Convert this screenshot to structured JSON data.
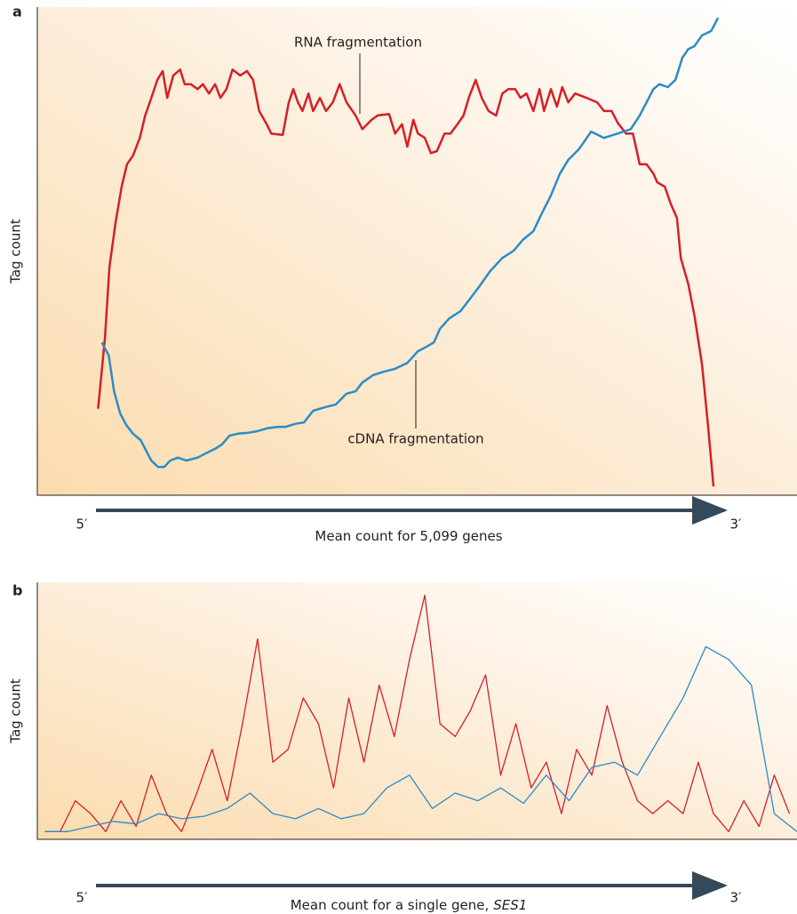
{
  "chart_data": [
    {
      "type": "line",
      "panel_label": "a",
      "y_label": "Tag count",
      "x_label": "Mean count for 5,099 genes",
      "x_start": "5′",
      "x_end": "3′",
      "xlim": [
        0,
        100
      ],
      "ylim": [
        0,
        100
      ],
      "series": [
        {
          "name": "RNA fragmentation",
          "color": "#d42027",
          "x": [
            8.0,
            8.9,
            9.5,
            10.3,
            11.1,
            11.8,
            12.6,
            13.5,
            14.2,
            15.0,
            15.8,
            16.5,
            17.1,
            17.9,
            18.8,
            19.4,
            20.2,
            21.1,
            21.8,
            22.6,
            23.4,
            24.1,
            24.9,
            25.7,
            26.7,
            27.6,
            28.4,
            29.2,
            30.2,
            30.8,
            32.3,
            33.1,
            33.7,
            34.3,
            34.9,
            35.7,
            36.3,
            37.2,
            38.0,
            38.9,
            39.8,
            40.7,
            41.9,
            42.8,
            44.0,
            44.8,
            46.3,
            47.1,
            48.0,
            48.7,
            49.5,
            50.1,
            51.0,
            51.8,
            52.6,
            53.6,
            54.4,
            55.3,
            56.1,
            56.8,
            57.7,
            58.5,
            59.4,
            60.4,
            61.2,
            62.0,
            62.9,
            63.6,
            64.4,
            65.3,
            66.1,
            66.7,
            67.6,
            68.4,
            69.1,
            69.9,
            70.8,
            72.3,
            73.7,
            74.6,
            75.6,
            76.4,
            77.5,
            78.4,
            79.3,
            80.2,
            81.1,
            81.6,
            82.6,
            83.4,
            84.2,
            84.7,
            85.7,
            86.5,
            87.5,
            88.3,
            89.0
          ],
          "values": [
            17.7,
            32.2,
            46.8,
            55.9,
            63.2,
            67.8,
            69.6,
            73.2,
            77.8,
            81.4,
            85.1,
            86.9,
            81.4,
            86.0,
            87.2,
            84.2,
            84.2,
            83.2,
            84.2,
            82.3,
            84.2,
            81.4,
            83.2,
            87.2,
            86.0,
            86.9,
            85.1,
            78.7,
            76.0,
            74.1,
            73.8,
            80.5,
            83.2,
            80.5,
            78.7,
            82.3,
            78.7,
            81.4,
            78.7,
            80.5,
            84.2,
            80.5,
            77.8,
            75.0,
            76.9,
            77.8,
            78.1,
            74.1,
            76.0,
            71.4,
            76.9,
            74.1,
            73.2,
            70.1,
            70.5,
            74.1,
            74.1,
            76.0,
            77.8,
            81.4,
            85.1,
            81.4,
            78.7,
            77.8,
            82.3,
            83.2,
            83.2,
            81.4,
            82.3,
            78.7,
            83.2,
            78.7,
            83.2,
            79.6,
            83.6,
            80.5,
            82.3,
            81.4,
            80.5,
            78.7,
            78.7,
            76.3,
            74.1,
            74.1,
            67.8,
            67.8,
            65.9,
            64.1,
            63.2,
            59.6,
            56.8,
            48.6,
            43.2,
            36.8,
            26.8,
            14.0,
            1.8
          ]
        },
        {
          "name": "cDNA fragmentation",
          "color": "#2b8cc4",
          "x": [
            8.5,
            9.4,
            10.1,
            10.9,
            11.7,
            12.6,
            13.6,
            14.2,
            15.0,
            15.9,
            16.7,
            17.5,
            18.5,
            19.6,
            21.1,
            22.2,
            23.4,
            24.3,
            25.3,
            26.4,
            27.8,
            28.9,
            30.2,
            31.6,
            32.7,
            33.9,
            35.1,
            36.3,
            37.8,
            39.3,
            40.7,
            41.9,
            42.8,
            44.2,
            45.6,
            47.1,
            48.7,
            50.1,
            51.2,
            52.2,
            53.0,
            54.2,
            55.7,
            56.8,
            58.2,
            59.6,
            61.2,
            62.7,
            63.9,
            65.3,
            66.4,
            67.6,
            68.8,
            69.9,
            71.3,
            72.9,
            74.6,
            76.4,
            78.1,
            79.3,
            80.2,
            81.1,
            81.9,
            83.0,
            84.0,
            84.9,
            85.7,
            86.5,
            87.5,
            88.7,
            89.6
          ],
          "values": [
            31.3,
            28.6,
            21.3,
            16.8,
            14.4,
            12.6,
            11.3,
            9.5,
            7.1,
            5.8,
            5.8,
            7.1,
            7.7,
            7.1,
            7.7,
            8.6,
            9.5,
            10.4,
            12.2,
            12.6,
            12.8,
            13.1,
            13.7,
            14.0,
            14.0,
            14.6,
            14.9,
            17.3,
            18.0,
            18.6,
            20.8,
            21.3,
            23.1,
            24.6,
            25.3,
            25.9,
            27.1,
            29.5,
            30.4,
            31.3,
            34.1,
            36.2,
            37.7,
            39.9,
            42.8,
            45.9,
            48.6,
            50.1,
            52.3,
            54.1,
            57.7,
            61.4,
            65.9,
            68.7,
            70.9,
            74.5,
            73.2,
            74.1,
            75.0,
            77.8,
            80.5,
            83.2,
            84.2,
            83.6,
            85.1,
            89.6,
            91.4,
            92.0,
            94.2,
            95.1,
            97.8
          ]
        }
      ]
    },
    {
      "type": "line",
      "panel_label": "b",
      "y_label": "Tag count",
      "x_label": "Mean count for a single gene,",
      "x_label_gene": "SES1",
      "x_start": "5′",
      "x_end": "3′",
      "xlim": [
        0,
        100
      ],
      "ylim": [
        0,
        100
      ],
      "series": [
        {
          "color": "#d42027",
          "x": [
            1,
            3,
            5,
            7,
            9,
            11,
            13,
            15,
            17,
            19,
            21,
            23,
            25,
            27,
            29,
            31,
            33,
            35,
            37,
            39,
            41,
            43,
            45,
            47,
            49,
            51,
            53,
            55,
            57,
            59,
            61,
            63,
            65,
            67,
            69,
            71,
            73,
            75,
            77,
            79,
            81,
            83,
            85,
            87,
            89,
            91,
            93,
            95,
            97,
            99
          ],
          "values": [
            3,
            3,
            15,
            10,
            3,
            15,
            5,
            25,
            10,
            3,
            18,
            35,
            15,
            45,
            78,
            30,
            35,
            55,
            45,
            20,
            55,
            30,
            60,
            40,
            70,
            95,
            45,
            40,
            50,
            64,
            25,
            45,
            20,
            30,
            10,
            35,
            25,
            52,
            30,
            15,
            10,
            15,
            10,
            30,
            10,
            3,
            15,
            5,
            25,
            10
          ]
        },
        {
          "color": "#2b8cc4",
          "x": [
            1,
            4,
            7,
            10,
            13,
            16,
            19,
            22,
            25,
            28,
            31,
            34,
            37,
            40,
            43,
            46,
            49,
            52,
            55,
            58,
            61,
            64,
            67,
            70,
            73,
            76,
            79,
            82,
            85,
            88,
            91,
            94,
            97,
            100
          ],
          "values": [
            3,
            3,
            5,
            7,
            6,
            10,
            8,
            9,
            12,
            18,
            10,
            8,
            12,
            8,
            10,
            20,
            25,
            12,
            18,
            15,
            20,
            14,
            25,
            15,
            28,
            30,
            25,
            40,
            55,
            75,
            70,
            60,
            10,
            3
          ]
        }
      ]
    }
  ]
}
